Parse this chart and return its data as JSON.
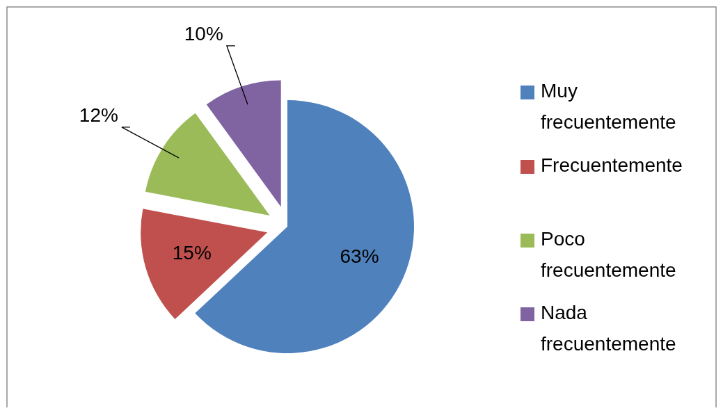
{
  "chart_data": {
    "type": "pie",
    "categories": [
      "Muy frecuentemente",
      "Frecuentemente",
      "Poco frecuentemente",
      "Nada frecuentemente"
    ],
    "values": [
      63,
      15,
      12,
      10
    ],
    "value_labels": [
      "63%",
      "15%",
      "12%",
      "10%"
    ],
    "colors": [
      "#4f81bd",
      "#c0504d",
      "#9bbb59",
      "#8064a2"
    ],
    "legend": "right"
  }
}
